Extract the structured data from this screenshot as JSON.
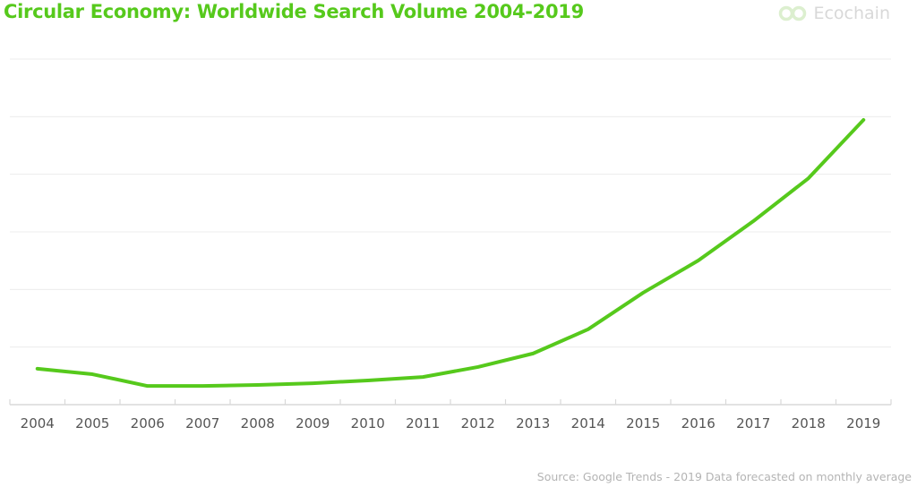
{
  "title": "Circular Economy: Worldwide Search Volume 2004-2019",
  "logo": {
    "text": "Ecochain",
    "icon": "infinity-chain-icon",
    "color": "#dcefcf"
  },
  "source": "Source: Google Trends - 2019 Data forecasted on monthly average",
  "chart_data": {
    "type": "line",
    "title": "Circular Economy: Worldwide Search Volume 2004-2019",
    "xlabel": "",
    "ylabel": "",
    "y_tick_labels_shown": false,
    "ylim": [
      0,
      100
    ],
    "grid": true,
    "line_color": "#56c91c",
    "categories": [
      "2004",
      "2005",
      "2006",
      "2007",
      "2008",
      "2009",
      "2010",
      "2011",
      "2012",
      "2013",
      "2014",
      "2015",
      "2016",
      "2017",
      "2018",
      "2019"
    ],
    "values": [
      10.4,
      8.8,
      5.4,
      5.4,
      5.7,
      6.2,
      7.0,
      8.0,
      10.9,
      14.8,
      21.8,
      32.4,
      41.7,
      53.1,
      65.5,
      82.4
    ]
  }
}
